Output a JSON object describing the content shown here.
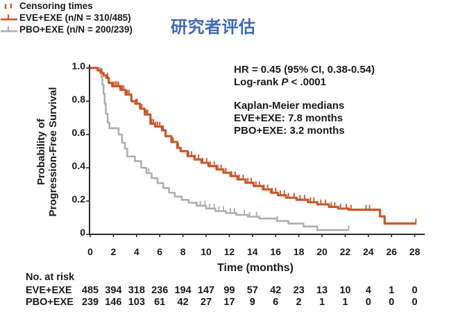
{
  "title": "研究者评估",
  "colors": {
    "title": "#3E6BB4",
    "eve_exe": "#C8582B",
    "pbo_exe": "#AFAEAC",
    "axis": "#2B2B2B",
    "text": "#1A1A1A"
  },
  "stats": {
    "hr": "HR = 0.45 (95% CI, 0.38-0.54)",
    "logrank_prefix": "Log-rank ",
    "logrank_p": "P",
    "logrank_suffix": " < .0001",
    "km_header": "Kaplan-Meier medians",
    "km_eve": "EVE+EXE: 7.8 months",
    "km_pbo": "PBO+EXE: 3.2 months"
  },
  "chart_data": {
    "type": "line",
    "variant": "kaplan-meier-step",
    "title": "研究者评估",
    "xlabel": "Time (months)",
    "ylabel": "Probability of Progression-Free Survival",
    "ylabel_lines": [
      "Probability of",
      "Progression-Free Survival"
    ],
    "xlim": [
      0,
      28
    ],
    "ylim": [
      0,
      1.0
    ],
    "xticks": [
      0,
      2,
      4,
      6,
      8,
      10,
      12,
      14,
      16,
      18,
      20,
      22,
      24,
      26,
      28
    ],
    "yticks": [
      {
        "v": 0,
        "label": "0"
      },
      {
        "v": 0.2,
        "label": "0.2"
      },
      {
        "v": 0.4,
        "label": "0.4"
      },
      {
        "v": 0.6,
        "label": "0.6"
      },
      {
        "v": 0.8,
        "label": "0.8"
      },
      {
        "v": 1.0,
        "label": "1.0"
      }
    ],
    "grid": false,
    "legend_position": "inside-bottom-left",
    "annotations": [
      "HR = 0.45 (95% CI, 0.38-0.54)",
      "Log-rank P < .0001",
      "Kaplan-Meier medians",
      "EVE+EXE: 7.8 months",
      "PBO+EXE: 3.2 months"
    ],
    "hazard_ratio": "0.45 (95% CI, 0.38-0.54)",
    "logrank_p": "< .0001",
    "medians_months": {
      "EVE+EXE": 7.8,
      "PBO+EXE": 3.2
    },
    "legend": [
      {
        "label": "Censoring times",
        "icon": "censor-ticks",
        "color": "#C8582B"
      },
      {
        "label": "EVE+EXE (n/N = 310/485)",
        "icon": "line-with-tick",
        "color": "#C8582B"
      },
      {
        "label": "PBO+EXE (n/N = 200/239)",
        "icon": "line-with-tick",
        "color": "#AFAEAC"
      }
    ],
    "series": [
      {
        "name": "EVE+EXE",
        "events_n_N": "310/485",
        "color": "#C8582B",
        "width": 3.2,
        "end_time": 28.15,
        "steps": [
          [
            0,
            1.0
          ],
          [
            0.65,
            0.985
          ],
          [
            0.9,
            0.97
          ],
          [
            1.15,
            0.955
          ],
          [
            1.4,
            0.94
          ],
          [
            1.6,
            0.91
          ],
          [
            1.9,
            0.89
          ],
          [
            2.6,
            0.868
          ],
          [
            3.05,
            0.84
          ],
          [
            3.55,
            0.8
          ],
          [
            3.9,
            0.785
          ],
          [
            4.3,
            0.755
          ],
          [
            4.7,
            0.72
          ],
          [
            5.2,
            0.665
          ],
          [
            5.6,
            0.648
          ],
          [
            6.2,
            0.625
          ],
          [
            6.5,
            0.59
          ],
          [
            7.0,
            0.555
          ],
          [
            7.5,
            0.52
          ],
          [
            7.8,
            0.5
          ],
          [
            8.4,
            0.47
          ],
          [
            9.0,
            0.45
          ],
          [
            9.6,
            0.43
          ],
          [
            10.2,
            0.41
          ],
          [
            10.9,
            0.39
          ],
          [
            11.5,
            0.37
          ],
          [
            12.1,
            0.35
          ],
          [
            12.7,
            0.33
          ],
          [
            13.4,
            0.31
          ],
          [
            14.1,
            0.29
          ],
          [
            14.9,
            0.27
          ],
          [
            15.6,
            0.25
          ],
          [
            16.2,
            0.235
          ],
          [
            16.9,
            0.22
          ],
          [
            17.8,
            0.208
          ],
          [
            18.8,
            0.193
          ],
          [
            19.6,
            0.18
          ],
          [
            20.6,
            0.165
          ],
          [
            21.4,
            0.155
          ],
          [
            22.3,
            0.148
          ],
          [
            25.0,
            0.108
          ],
          [
            25.4,
            0.065
          ]
        ],
        "censor_times": [
          1.0,
          1.5,
          2.0,
          2.15,
          2.3,
          2.45,
          2.6,
          2.75,
          2.9,
          3.2,
          3.35,
          3.95,
          4.05,
          4.45,
          4.85,
          4.95,
          5.3,
          5.45,
          5.65,
          5.8,
          6.0,
          6.3,
          7.15,
          7.6,
          8.5,
          8.75,
          9.05,
          9.35,
          9.7,
          10.05,
          10.35,
          10.7,
          11.0,
          11.3,
          11.7,
          12.2,
          12.5,
          12.85,
          13.2,
          13.6,
          13.9,
          14.3,
          14.6,
          15.0,
          15.3,
          15.7,
          16.0,
          16.4,
          16.75,
          17.1,
          17.6,
          18.1,
          18.5,
          19.0,
          19.3,
          19.9,
          20.3,
          20.8,
          21.1,
          21.6,
          22.1,
          22.5,
          23.8,
          24.1,
          28.1
        ]
      },
      {
        "name": "PBO+EXE",
        "events_n_N": "200/239",
        "color": "#AFAEAC",
        "width": 2.6,
        "end_time": 22.35,
        "steps": [
          [
            0,
            1.0
          ],
          [
            0.85,
            0.98
          ],
          [
            0.95,
            0.945
          ],
          [
            1.05,
            0.9
          ],
          [
            1.15,
            0.845
          ],
          [
            1.25,
            0.785
          ],
          [
            1.35,
            0.725
          ],
          [
            1.5,
            0.672
          ],
          [
            1.65,
            0.638
          ],
          [
            2.45,
            0.6
          ],
          [
            2.75,
            0.55
          ],
          [
            3.0,
            0.515
          ],
          [
            3.2,
            0.468
          ],
          [
            3.85,
            0.44
          ],
          [
            4.4,
            0.4
          ],
          [
            4.85,
            0.368
          ],
          [
            5.3,
            0.338
          ],
          [
            5.8,
            0.308
          ],
          [
            6.3,
            0.278
          ],
          [
            6.8,
            0.25
          ],
          [
            7.3,
            0.227
          ],
          [
            7.9,
            0.207
          ],
          [
            8.5,
            0.19
          ],
          [
            9.2,
            0.172
          ],
          [
            10.0,
            0.155
          ],
          [
            10.8,
            0.14
          ],
          [
            11.7,
            0.128
          ],
          [
            12.6,
            0.117
          ],
          [
            13.6,
            0.106
          ],
          [
            14.6,
            0.095
          ],
          [
            16.1,
            0.08
          ],
          [
            17.1,
            0.065
          ],
          [
            18.4,
            0.047
          ],
          [
            19.6,
            0.026
          ]
        ],
        "censor_times": [
          5.05,
          9.5,
          9.9,
          10.3,
          10.7,
          11.1,
          11.5,
          12.1,
          12.45,
          13.3,
          13.75,
          14.35,
          16.15,
          22.3
        ]
      }
    ]
  },
  "risk_table": {
    "header": "No. at risk",
    "times": [
      0,
      2,
      4,
      6,
      8,
      10,
      12,
      14,
      16,
      18,
      20,
      22,
      24,
      26,
      28
    ],
    "rows": [
      {
        "label": "EVE+EXE",
        "values": [
          "485",
          "394",
          "318",
          "236",
          "194",
          "147",
          "99",
          "57",
          "42",
          "23",
          "13",
          "10",
          "4",
          "1",
          "0"
        ]
      },
      {
        "label": "PBO+EXE",
        "values": [
          "239",
          "146",
          "103",
          "61",
          "42",
          "27",
          "17",
          "9",
          "6",
          "2",
          "1",
          "1",
          "0",
          "0",
          "0"
        ]
      }
    ]
  }
}
